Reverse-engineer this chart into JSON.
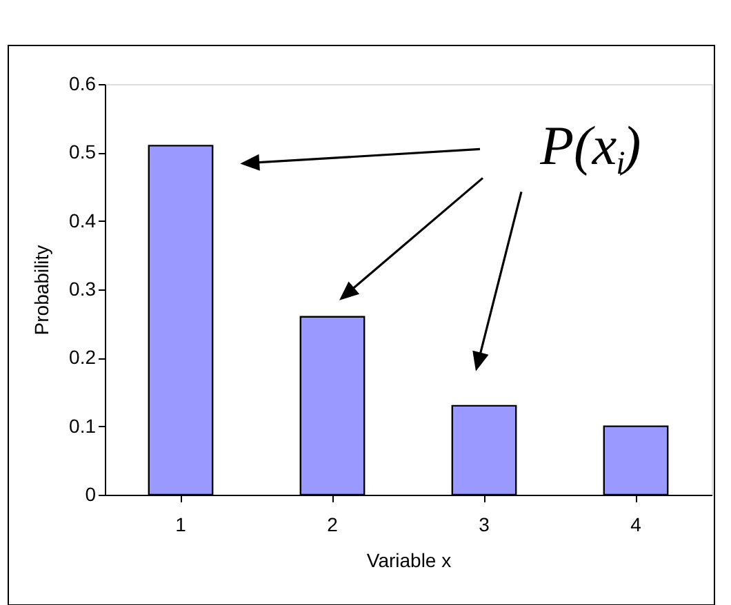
{
  "chart_data": {
    "type": "bar",
    "xlabel": "Variable x",
    "ylabel": "Probability",
    "categories": [
      "1",
      "2",
      "3",
      "4"
    ],
    "values": [
      0.51,
      0.26,
      0.13,
      0.1
    ],
    "color": "#9999ff",
    "ylim": [
      0,
      0.6
    ],
    "yticks": [
      0,
      0.1,
      0.2,
      0.3,
      0.4,
      0.5,
      0.6
    ],
    "grid": false,
    "annotations": [
      "P(x$_{i}$)"
    ]
  }
}
